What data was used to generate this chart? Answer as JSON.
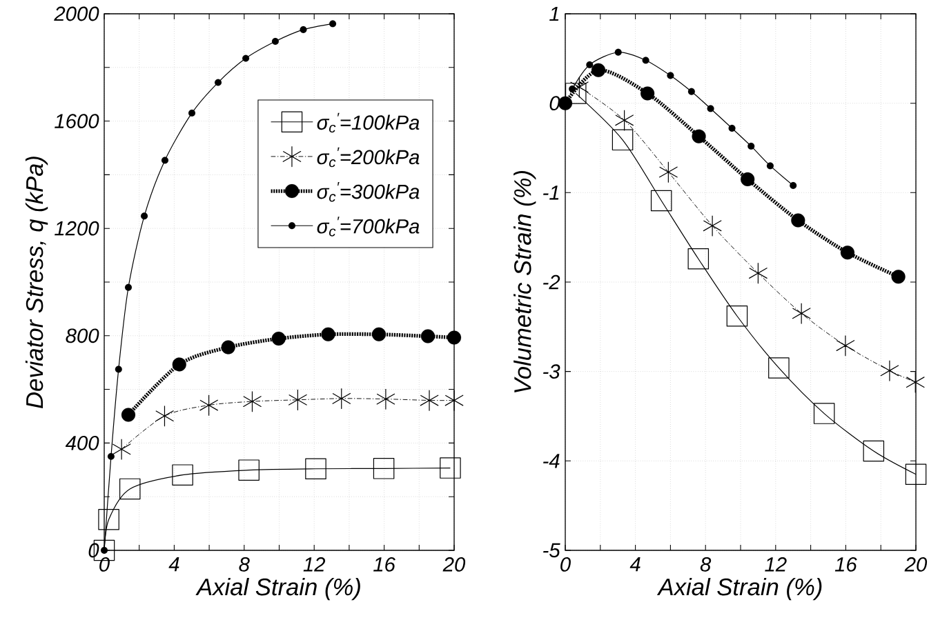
{
  "chart_data": [
    {
      "type": "line",
      "xlabel": "Axial Strain (%)",
      "ylabel": "Deviator Stress, q (kPa)",
      "xlim": [
        0,
        20
      ],
      "ylim": [
        0,
        2000
      ],
      "xticks": [
        0,
        {
          "value": 2,
          "label": null
        },
        4,
        {
          "value": 6,
          "label": null
        },
        8,
        {
          "value": 10,
          "label": null
        },
        12,
        {
          "value": 14,
          "label": null
        },
        16,
        {
          "value": 18,
          "label": null
        },
        20
      ],
      "yticks": [
        0,
        {
          "value": 200,
          "label": null
        },
        400,
        {
          "value": 600,
          "label": null
        },
        800,
        {
          "value": 1000,
          "label": null
        },
        1200,
        {
          "value": 1400,
          "label": null
        },
        1600,
        {
          "value": 1800,
          "label": null
        },
        2000
      ],
      "grid": true,
      "legend": "top right",
      "series": [
        {
          "name": "σ$_{c}$$^{′}$=100kPa",
          "color": "#000000",
          "marker": "square",
          "line_style": "solid",
          "x": [
            0,
            0.26,
            1.47,
            4.48,
            8.27,
            12.09,
            15.98,
            19.78
          ],
          "values": [
            0,
            115,
            229,
            281,
            299,
            304,
            305,
            307
          ]
        },
        {
          "name": "σ$_{c}$$^{′}$=200kPa",
          "color": "#000000",
          "marker": "cross",
          "line_style": "dashed",
          "x": [
            0.99,
            3.45,
            5.98,
            8.46,
            11.06,
            13.56,
            16.09,
            18.58,
            20
          ],
          "values": [
            377,
            501,
            541,
            555,
            561,
            566,
            564,
            559,
            559
          ]
        },
        {
          "name": "σ$_{c}$$^{′}$=300kPa",
          "color": "#000000",
          "marker": "circle",
          "line_style": "dotted",
          "x": [
            1.38,
            4.29,
            7.09,
            9.97,
            12.8,
            15.7,
            18.5,
            20
          ],
          "values": [
            505,
            693,
            757,
            789,
            805,
            805,
            798,
            793
          ]
        },
        {
          "name": "σ$_{c}$$^{′}$=700kPa",
          "color": "#000000",
          "marker": "circle",
          "line_style": "solid",
          "x": [
            0,
            0.39,
            0.82,
            1.38,
            2.29,
            3.47,
            5.01,
            6.51,
            8.09,
            9.78,
            11.38,
            13.06
          ],
          "values": [
            0,
            350,
            675,
            980,
            1246,
            1454,
            1630,
            1744,
            1834,
            1897,
            1941,
            1963
          ]
        }
      ]
    },
    {
      "type": "line",
      "xlabel": "Axial Strain (%)",
      "ylabel": "Volumetric Strain (%)",
      "xlim": [
        0,
        20
      ],
      "ylim": [
        -5,
        1
      ],
      "xticks": [
        0,
        {
          "value": 2,
          "label": null
        },
        4,
        {
          "value": 6,
          "label": null
        },
        8,
        {
          "value": 10,
          "label": null
        },
        12,
        {
          "value": 14,
          "label": null
        },
        16,
        {
          "value": 18,
          "label": null
        },
        20
      ],
      "yticks": [
        -5,
        -4,
        -3,
        -2,
        -1,
        0,
        1
      ],
      "grid": true,
      "series": [
        {
          "color": "#000000",
          "marker": "square",
          "line_style": "solid",
          "x": [
            0.6,
            3.27,
            5.48,
            7.59,
            9.8,
            12.18,
            14.77,
            17.59,
            20
          ],
          "values": [
            0.11,
            -0.41,
            -1.09,
            -1.74,
            -2.38,
            -2.96,
            -3.47,
            -3.89,
            -4.15
          ]
        },
        {
          "color": "#000000",
          "marker": "cross",
          "line_style": "dashed",
          "x": [
            0.8,
            3.37,
            5.88,
            8.39,
            11.0,
            13.47,
            15.98,
            18.5,
            19.97
          ],
          "values": [
            0.18,
            -0.19,
            -0.77,
            -1.37,
            -1.9,
            -2.35,
            -2.71,
            -2.99,
            -3.12
          ]
        },
        {
          "color": "#000000",
          "marker": "circle",
          "line_style": "dotted",
          "x": [
            0,
            1.89,
            4.69,
            7.62,
            10.4,
            13.28,
            16.1,
            19.0
          ],
          "values": [
            0,
            0.37,
            0.11,
            -0.37,
            -0.85,
            -1.31,
            -1.67,
            -1.94
          ]
        },
        {
          "color": "#000000",
          "marker": "circle",
          "line_style": "solid",
          "x": [
            0.4,
            1.39,
            3.02,
            4.59,
            6.0,
            7.2,
            8.29,
            9.51,
            10.6,
            11.69,
            13.0
          ],
          "values": [
            0.16,
            0.43,
            0.57,
            0.48,
            0.31,
            0.13,
            -0.06,
            -0.28,
            -0.48,
            -0.7,
            -0.92
          ]
        }
      ]
    }
  ]
}
